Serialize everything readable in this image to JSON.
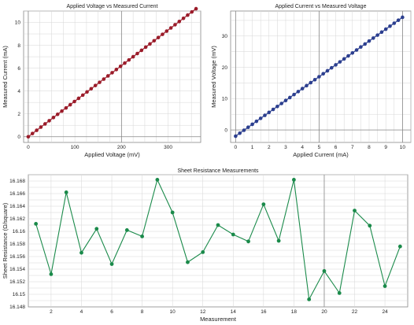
{
  "chart_data": [
    {
      "id": "iv",
      "type": "line",
      "title": "Applied Voltage vs Measured Current",
      "xlabel": "Applied Voltage (mV)",
      "ylabel": "Measured Current (mA)",
      "xlim": [
        -10,
        370
      ],
      "ylim": [
        -0.5,
        11
      ],
      "xticks": [
        0,
        100,
        200,
        300
      ],
      "yticks": [
        0,
        2,
        4,
        6,
        8,
        10
      ],
      "grid": true,
      "color": "#9b1c2a",
      "series": [
        {
          "x": [
            0,
            9,
            18,
            27,
            36,
            45,
            54,
            63,
            72,
            81,
            90,
            99,
            108,
            117,
            126,
            135,
            144,
            153,
            162,
            171,
            180,
            189,
            198,
            207,
            216,
            225,
            234,
            243,
            252,
            261,
            270,
            279,
            288,
            297,
            306,
            315,
            324,
            333,
            342,
            351,
            360
          ],
          "y": [
            0.0,
            0.28,
            0.56,
            0.84,
            1.12,
            1.4,
            1.68,
            1.96,
            2.24,
            2.52,
            2.8,
            3.08,
            3.36,
            3.64,
            3.92,
            4.2,
            4.48,
            4.76,
            5.04,
            5.32,
            5.6,
            5.88,
            6.16,
            6.44,
            6.72,
            7.0,
            7.28,
            7.56,
            7.84,
            8.12,
            8.4,
            8.68,
            8.96,
            9.24,
            9.52,
            9.8,
            10.08,
            10.36,
            10.64,
            10.92,
            11.2
          ]
        }
      ]
    },
    {
      "id": "vi",
      "type": "line",
      "title": "Applied Current vs Measured Voltage",
      "xlabel": "Applied Current (mA)",
      "ylabel": "Measured Voltage (mV)",
      "xlim": [
        -0.3,
        10.5
      ],
      "ylim": [
        -4,
        38
      ],
      "xticks": [
        0,
        1,
        2,
        3,
        4,
        5,
        6,
        7,
        8,
        9,
        10
      ],
      "yticks": [
        0,
        10,
        20,
        30
      ],
      "grid": true,
      "color": "#2c3f8f",
      "series": [
        {
          "x": [
            0,
            0.25,
            0.5,
            0.75,
            1,
            1.25,
            1.5,
            1.75,
            2,
            2.25,
            2.5,
            2.75,
            3,
            3.25,
            3.5,
            3.75,
            4,
            4.25,
            4.5,
            4.75,
            5,
            5.25,
            5.5,
            5.75,
            6,
            6.25,
            6.5,
            6.75,
            7,
            7.25,
            7.5,
            7.75,
            8,
            8.25,
            8.5,
            8.75,
            9,
            9.25,
            9.5,
            9.75,
            10
          ],
          "y": [
            -2.0,
            -1.05,
            -0.1,
            0.85,
            1.8,
            2.75,
            3.7,
            4.65,
            5.6,
            6.55,
            7.5,
            8.45,
            9.4,
            10.35,
            11.3,
            12.25,
            13.2,
            14.15,
            15.1,
            16.05,
            17.0,
            17.95,
            18.9,
            19.85,
            20.8,
            21.75,
            22.7,
            23.65,
            24.6,
            25.55,
            26.5,
            27.45,
            28.4,
            29.35,
            30.3,
            31.25,
            32.2,
            33.15,
            34.1,
            35.05,
            36.0
          ]
        }
      ]
    },
    {
      "id": "rs",
      "type": "line",
      "title": "Sheet Resistance Measurements",
      "xlabel": "Measurement",
      "ylabel": "Sheet Resistance (Ω/square)",
      "xlim": [
        0.5,
        25.5
      ],
      "ylim": [
        16.148,
        16.169
      ],
      "xticks": [
        2,
        4,
        6,
        8,
        10,
        12,
        14,
        16,
        18,
        20,
        22,
        24
      ],
      "yticks": [
        "16.148",
        "16.15",
        "16.152",
        "16.154",
        "16.156",
        "16.158",
        "16.16",
        "16.162",
        "16.164",
        "16.166",
        "16.168"
      ],
      "grid": true,
      "color": "#1a8a4a",
      "series": [
        {
          "x": [
            1,
            2,
            3,
            4,
            5,
            6,
            7,
            8,
            9,
            10,
            11,
            12,
            13,
            14,
            15,
            16,
            17,
            18,
            19,
            20,
            21,
            22,
            23,
            24,
            25
          ],
          "y": [
            16.1612,
            16.1532,
            16.1662,
            16.1566,
            16.1604,
            16.1548,
            16.1602,
            16.1592,
            16.1682,
            16.163,
            16.1551,
            16.1567,
            16.161,
            16.1595,
            16.1584,
            16.1643,
            16.1585,
            16.1682,
            16.1492,
            16.1537,
            16.1502,
            16.1633,
            16.1609,
            16.1513,
            16.1576
          ]
        }
      ]
    }
  ]
}
